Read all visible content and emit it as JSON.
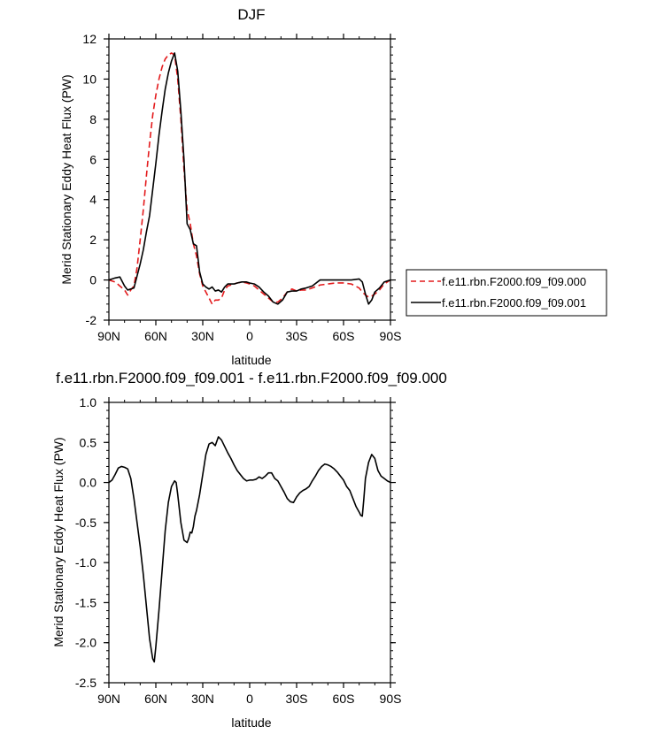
{
  "chart_data": [
    {
      "type": "line",
      "title": "DJF",
      "xlabel": "latitude",
      "ylabel": "Merid Stationary Eddy Heat Flux (PW)",
      "xlim": [
        -90,
        90
      ],
      "ylim": [
        -2,
        12
      ],
      "x_ticks": [
        -90,
        -60,
        -30,
        0,
        30,
        60,
        90
      ],
      "x_tick_labels": [
        "90N",
        "60N",
        "30N",
        "0",
        "30S",
        "60S",
        "90S"
      ],
      "y_ticks": [
        -2,
        0,
        2,
        4,
        6,
        8,
        10,
        12
      ],
      "y_tick_labels": [
        "-2",
        "0",
        "2",
        "4",
        "6",
        "8",
        "10",
        "12"
      ],
      "legend_position": "right",
      "series": [
        {
          "name": "f.e11.rbn.F2000.f09_f09.000",
          "color": "#e31a1c",
          "dash": "dashed",
          "x": [
            -90,
            -86,
            -83,
            -80,
            -78,
            -76,
            -74,
            -72,
            -70,
            -68,
            -66,
            -64,
            -62,
            -60,
            -58,
            -56,
            -54,
            -52,
            -50,
            -48,
            -46,
            -44,
            -42,
            -40,
            -38,
            -36,
            -34,
            -32,
            -30,
            -28,
            -26,
            -24,
            -22,
            -20,
            -18,
            -16,
            -14,
            -12,
            -10,
            -8,
            -5,
            -2,
            0,
            3,
            6,
            9,
            12,
            15,
            18,
            21,
            24,
            27,
            30,
            33,
            36,
            40,
            45,
            50,
            55,
            60,
            65,
            70,
            72,
            74,
            76,
            78,
            80,
            83,
            86,
            90
          ],
          "y": [
            0,
            -0.1,
            -0.3,
            -0.5,
            -0.75,
            -0.5,
            -0.3,
            0.6,
            2,
            3.5,
            5.2,
            6.8,
            8.2,
            9.2,
            10,
            10.6,
            11,
            11.2,
            11.3,
            11.2,
            10,
            8,
            5.5,
            3.5,
            2.8,
            1.8,
            1.2,
            0.3,
            -0.3,
            -0.6,
            -0.9,
            -1.2,
            -1,
            -1,
            -0.9,
            -0.5,
            -0.3,
            -0.25,
            -0.2,
            -0.15,
            -0.1,
            -0.15,
            -0.2,
            -0.3,
            -0.5,
            -0.7,
            -0.9,
            -1.1,
            -1.1,
            -0.9,
            -0.6,
            -0.45,
            -0.55,
            -0.5,
            -0.5,
            -0.4,
            -0.25,
            -0.2,
            -0.15,
            -0.15,
            -0.2,
            -0.4,
            -0.6,
            -0.75,
            -0.85,
            -0.8,
            -0.7,
            -0.5,
            -0.2,
            0
          ]
        },
        {
          "name": "f.e11.rbn.F2000.f09_f09.001",
          "color": "#000000",
          "dash": "solid",
          "x": [
            -90,
            -86,
            -83,
            -80,
            -78,
            -76,
            -74,
            -72,
            -70,
            -68,
            -66,
            -64,
            -62,
            -60,
            -58,
            -56,
            -54,
            -52,
            -50,
            -48,
            -46,
            -44,
            -42,
            -40,
            -38,
            -36,
            -34,
            -32,
            -30,
            -28,
            -26,
            -24,
            -22,
            -20,
            -18,
            -16,
            -14,
            -12,
            -10,
            -8,
            -5,
            -2,
            0,
            3,
            6,
            9,
            12,
            15,
            18,
            21,
            24,
            27,
            30,
            33,
            36,
            40,
            45,
            50,
            55,
            60,
            65,
            70,
            72,
            74,
            76,
            78,
            80,
            83,
            86,
            90
          ],
          "y": [
            0,
            0.1,
            0.15,
            -0.3,
            -0.5,
            -0.45,
            -0.4,
            0.2,
            0.8,
            1.5,
            2.4,
            3.2,
            4.5,
            5.8,
            7.2,
            8.4,
            9.5,
            10.3,
            10.9,
            11.3,
            10.4,
            8.4,
            6,
            2.8,
            2.5,
            1.8,
            1.7,
            0.4,
            -0.2,
            -0.35,
            -0.45,
            -0.35,
            -0.55,
            -0.5,
            -0.6,
            -0.35,
            -0.2,
            -0.2,
            -0.2,
            -0.15,
            -0.1,
            -0.1,
            -0.15,
            -0.2,
            -0.35,
            -0.6,
            -0.8,
            -1.1,
            -1.2,
            -1,
            -0.6,
            -0.55,
            -0.55,
            -0.45,
            -0.4,
            -0.3,
            0,
            0,
            0,
            0,
            0,
            0.05,
            -0.1,
            -0.7,
            -1.2,
            -1,
            -0.6,
            -0.4,
            -0.1,
            0
          ]
        }
      ]
    },
    {
      "type": "line",
      "title": "f.e11.rbn.F2000.f09_f09.001 - f.e11.rbn.F2000.f09_f09.000",
      "xlabel": "latitude",
      "ylabel": "Merid Stationary Eddy Heat Flux (PW)",
      "xlim": [
        -90,
        90
      ],
      "ylim": [
        -2.5,
        1.0
      ],
      "x_ticks": [
        -90,
        -60,
        -30,
        0,
        30,
        60,
        90
      ],
      "x_tick_labels": [
        "90N",
        "60N",
        "30N",
        "0",
        "30S",
        "60S",
        "90S"
      ],
      "y_ticks": [
        -2.5,
        -2.0,
        -1.5,
        -1.0,
        -0.5,
        0.0,
        0.5,
        1.0
      ],
      "y_tick_labels": [
        "-2.5",
        "-2.0",
        "-1.5",
        "-1.0",
        "-0.5",
        "0.0",
        "0.5",
        "1.0"
      ],
      "series": [
        {
          "color": "#000000",
          "dash": "solid",
          "x": [
            -90,
            -88,
            -86,
            -84,
            -82,
            -80,
            -78,
            -76,
            -74,
            -72,
            -70,
            -68,
            -66,
            -64,
            -62,
            -61,
            -60,
            -58,
            -56,
            -54,
            -52,
            -50,
            -48,
            -47,
            -46,
            -44,
            -42,
            -40,
            -39,
            -38,
            -37,
            -36,
            -35,
            -34,
            -32,
            -30,
            -28,
            -26,
            -24,
            -22,
            -20,
            -18,
            -16,
            -14,
            -12,
            -10,
            -8,
            -6,
            -4,
            -2,
            0,
            2,
            4,
            6,
            8,
            10,
            12,
            14,
            16,
            18,
            20,
            22,
            24,
            26,
            28,
            30,
            32,
            34,
            36,
            38,
            40,
            42,
            44,
            46,
            48,
            50,
            52,
            54,
            56,
            58,
            60,
            62,
            64,
            66,
            68,
            70,
            71,
            72,
            73,
            74,
            76,
            78,
            80,
            82,
            84,
            86,
            88,
            90
          ],
          "y": [
            0,
            0.03,
            0.1,
            0.18,
            0.2,
            0.19,
            0.17,
            0.05,
            -0.2,
            -0.5,
            -0.8,
            -1.15,
            -1.55,
            -1.95,
            -2.2,
            -2.24,
            -2.05,
            -1.6,
            -1.1,
            -0.6,
            -0.25,
            -0.05,
            0.02,
            0,
            -0.15,
            -0.5,
            -0.72,
            -0.75,
            -0.7,
            -0.62,
            -0.63,
            -0.55,
            -0.42,
            -0.35,
            -0.15,
            0.1,
            0.35,
            0.48,
            0.5,
            0.46,
            0.57,
            0.53,
            0.45,
            0.37,
            0.3,
            0.22,
            0.15,
            0.1,
            0.05,
            0.02,
            0.03,
            0.03,
            0.04,
            0.07,
            0.05,
            0.08,
            0.12,
            0.12,
            0.05,
            0.02,
            -0.05,
            -0.12,
            -0.2,
            -0.24,
            -0.25,
            -0.18,
            -0.13,
            -0.1,
            -0.08,
            -0.05,
            0.02,
            0.08,
            0.15,
            0.2,
            0.23,
            0.22,
            0.2,
            0.17,
            0.13,
            0.08,
            0.03,
            -0.05,
            -0.1,
            -0.2,
            -0.3,
            -0.37,
            -0.41,
            -0.42,
            -0.2,
            0.05,
            0.25,
            0.35,
            0.3,
            0.15,
            0.08,
            0.05,
            0.02,
            0
          ]
        }
      ]
    }
  ]
}
